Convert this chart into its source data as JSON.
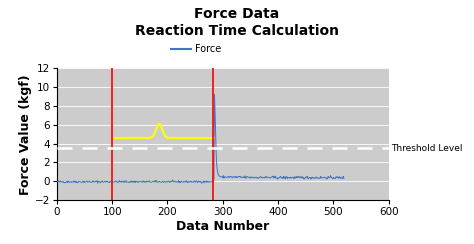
{
  "title_line1": "Force Data",
  "title_line2": "Reaction Time Calculation",
  "xlabel": "Data Number",
  "ylabel": "Force Value (kgf)",
  "xlim": [
    0,
    600
  ],
  "ylim": [
    -2,
    12
  ],
  "yticks": [
    -2,
    0,
    2,
    4,
    6,
    8,
    10,
    12
  ],
  "xticks": [
    0,
    100,
    200,
    300,
    400,
    500,
    600
  ],
  "threshold": 3.5,
  "red_line1_x": 100,
  "red_line2_x": 283,
  "yellow_flat_y": 4.6,
  "yellow_start_x": 100,
  "yellow_end_x": 283,
  "yellow_bump_x": 185,
  "yellow_bump_y": 6.1,
  "blue_spike_x": 285,
  "blue_spike_y": 9.2,
  "figure_bg_color": "#ffffff",
  "plot_bg_color": "#cccccc",
  "force_line_color": "#4472c4",
  "red_line_color": "#ff0000",
  "yellow_line_color": "#ffff00",
  "threshold_color": "#ffffff",
  "threshold_label": "Threshold Level",
  "legend_label": "Force",
  "title_fontsize": 10,
  "axis_label_fontsize": 9,
  "tick_fontsize": 7.5
}
